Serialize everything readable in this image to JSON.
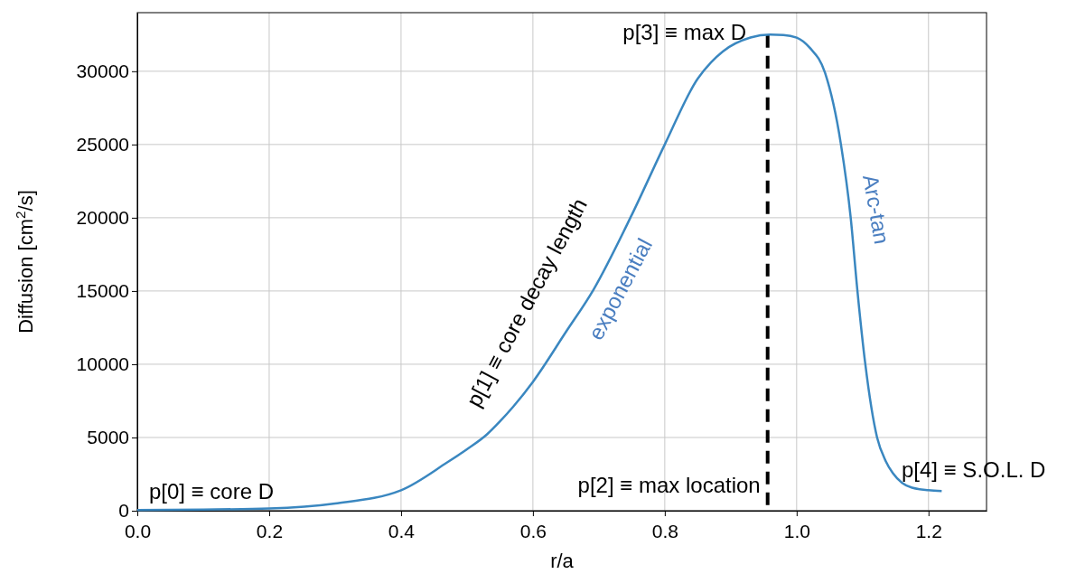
{
  "chart_data": {
    "type": "line",
    "xlabel": "r/a",
    "ylabel": "Diffusion [cm$^{2}$/s]",
    "xlim": [
      0,
      1.288
    ],
    "ylim": [
      0,
      34000
    ],
    "xticks": [
      {
        "value": 0,
        "label": "0.0"
      },
      {
        "value": 0.2,
        "label": "0.2"
      },
      {
        "value": 0.4,
        "label": "0.4"
      },
      {
        "value": 0.6,
        "label": "0.6"
      },
      {
        "value": 0.8,
        "label": "0.8"
      },
      {
        "value": 1,
        "label": "1.0"
      },
      {
        "value": 1.2,
        "label": "1.2"
      }
    ],
    "yticks": [
      0,
      5000,
      10000,
      15000,
      20000,
      25000,
      30000
    ],
    "grid": true,
    "line_style": "solid",
    "marker": "none",
    "series": [
      {
        "color": "#3a87c0",
        "x": [
          0,
          0.1,
          0.2,
          0.3,
          0.4,
          0.47,
          0.5,
          0.53,
          0.55,
          0.57,
          0.6,
          0.65,
          0.692,
          0.75,
          0.8,
          0.85,
          0.87,
          0.888,
          0.93,
          0.96,
          0.98,
          1.0,
          1.02,
          1.043,
          1.067,
          1.082,
          1.092,
          1.104,
          1.122,
          1.135,
          1.146,
          1.16,
          1.175,
          1.2,
          1.22
        ],
        "values": [
          50,
          80,
          150,
          500,
          1400,
          3300,
          4200,
          5200,
          6100,
          7100,
          8800,
          12200,
          15100,
          20200,
          25000,
          29500,
          30600,
          31350,
          32300,
          32500,
          32480,
          32300,
          31600,
          29900,
          25060,
          20000,
          15100,
          10060,
          5000,
          3400,
          2560,
          1900,
          1570,
          1400,
          1340
        ]
      }
    ],
    "ref_lines": [
      {
        "axis": "x",
        "value": 0.956,
        "label": "p[2] ≡ max location",
        "color": "#000000",
        "line_style": "dashed"
      }
    ],
    "annotations": [
      "p[0] ≡ core D",
      "p[1] ≡ core decay length",
      "exponential",
      "p[3] ≡ max D",
      "Arc-tan",
      "p[4] ≡ S.O.L. D"
    ]
  }
}
